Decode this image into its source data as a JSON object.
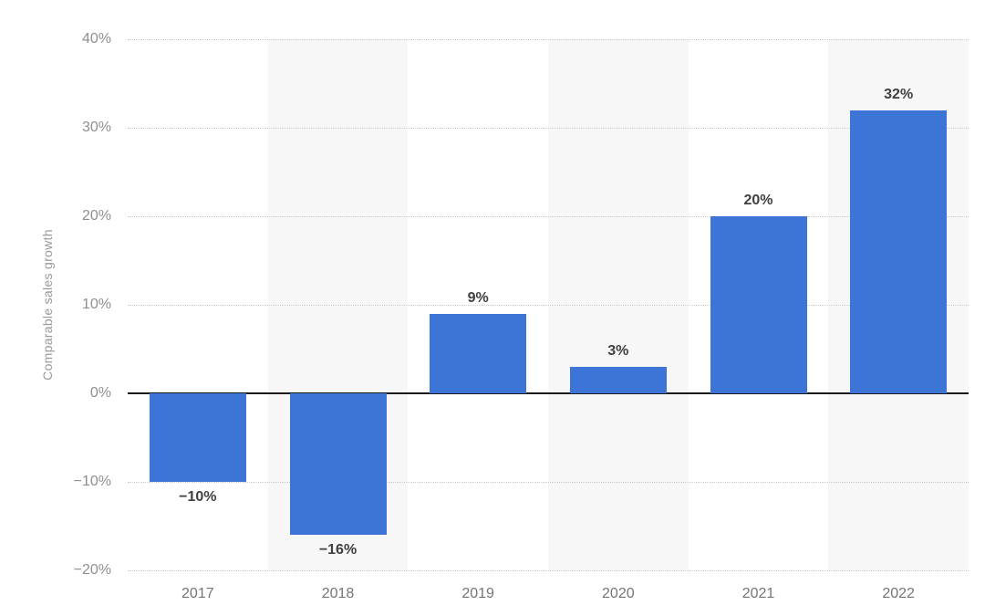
{
  "chart_data": {
    "type": "bar",
    "ylabel": "Comparable sales growth",
    "categories": [
      "2017",
      "2018",
      "2019",
      "2020",
      "2021",
      "2022"
    ],
    "values": [
      -10,
      -16,
      9,
      3,
      20,
      32
    ],
    "value_labels": [
      "−10%",
      "−16%",
      "9%",
      "3%",
      "20%",
      "32%"
    ],
    "ylim": [
      -20,
      40
    ],
    "yticks": [
      {
        "value": 40,
        "label": "40%"
      },
      {
        "value": 30,
        "label": "30%"
      },
      {
        "value": 20,
        "label": "20%"
      },
      {
        "value": 10,
        "label": "10%"
      },
      {
        "value": 0,
        "label": "0%"
      },
      {
        "value": -10,
        "label": "−10%"
      },
      {
        "value": -20,
        "label": "−20%"
      }
    ],
    "grid": "horizontal-dotted",
    "legend": "none",
    "colors": {
      "bar": "#3d75d6",
      "gridline": "#c9c9c9",
      "zero_line": "#1a1a1a",
      "column_stripe": "#f7f7f7",
      "y_tick_text": "#8f8f8f",
      "x_tick_text": "#757575",
      "value_label_text": "#404040",
      "y_axis_title_text": "#999999",
      "background": "#ffffff"
    }
  }
}
